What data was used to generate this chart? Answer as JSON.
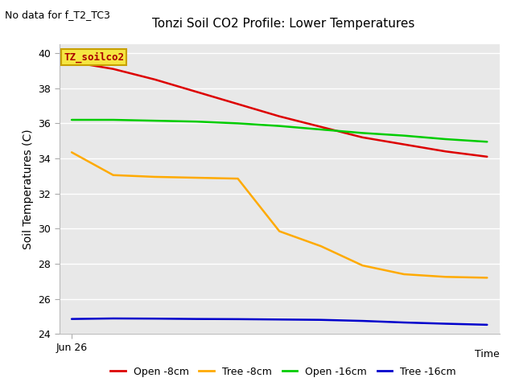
{
  "title": "Tonzi Soil CO2 Profile: Lower Temperatures",
  "subtitle": "No data for f_T2_TC3",
  "ylabel": "Soil Temperatures (C)",
  "xlabel": "Time",
  "xlabel_bottom": "Jun 26",
  "ylim": [
    24,
    40.5
  ],
  "yticks": [
    24,
    26,
    28,
    30,
    32,
    34,
    36,
    38,
    40
  ],
  "background_color": "#e8e8e8",
  "plot_bg": "#e0e0e0",
  "legend_label": "TZ_soilco2",
  "legend_box_facecolor": "#f5e642",
  "legend_box_edgecolor": "#c8a000",
  "figsize": [
    6.4,
    4.8
  ],
  "dpi": 100,
  "series": {
    "open_8cm": {
      "label": "Open -8cm",
      "color": "#dd0000",
      "x": [
        0,
        1,
        2,
        3,
        4,
        5,
        6,
        7,
        8,
        9,
        10
      ],
      "y": [
        39.5,
        39.1,
        38.5,
        37.8,
        37.1,
        36.4,
        35.8,
        35.2,
        34.8,
        34.4,
        34.1
      ]
    },
    "tree_8cm": {
      "label": "Tree -8cm",
      "color": "#ffaa00",
      "x": [
        0,
        1,
        2,
        3,
        4,
        5,
        6,
        7,
        8,
        9,
        10
      ],
      "y": [
        34.35,
        33.05,
        32.95,
        32.9,
        32.85,
        29.85,
        29.0,
        27.9,
        27.4,
        27.25,
        27.2
      ]
    },
    "open_16cm": {
      "label": "Open -16cm",
      "color": "#00cc00",
      "x": [
        0,
        1,
        2,
        3,
        4,
        5,
        6,
        7,
        8,
        9,
        10
      ],
      "y": [
        36.2,
        36.2,
        36.15,
        36.1,
        36.0,
        35.85,
        35.65,
        35.45,
        35.3,
        35.1,
        34.95
      ]
    },
    "tree_16cm": {
      "label": "Tree -16cm",
      "color": "#0000cc",
      "x": [
        0,
        1,
        2,
        3,
        4,
        5,
        6,
        7,
        8,
        9,
        10
      ],
      "y": [
        24.85,
        24.88,
        24.87,
        24.85,
        24.84,
        24.82,
        24.8,
        24.74,
        24.65,
        24.58,
        24.52
      ]
    }
  }
}
